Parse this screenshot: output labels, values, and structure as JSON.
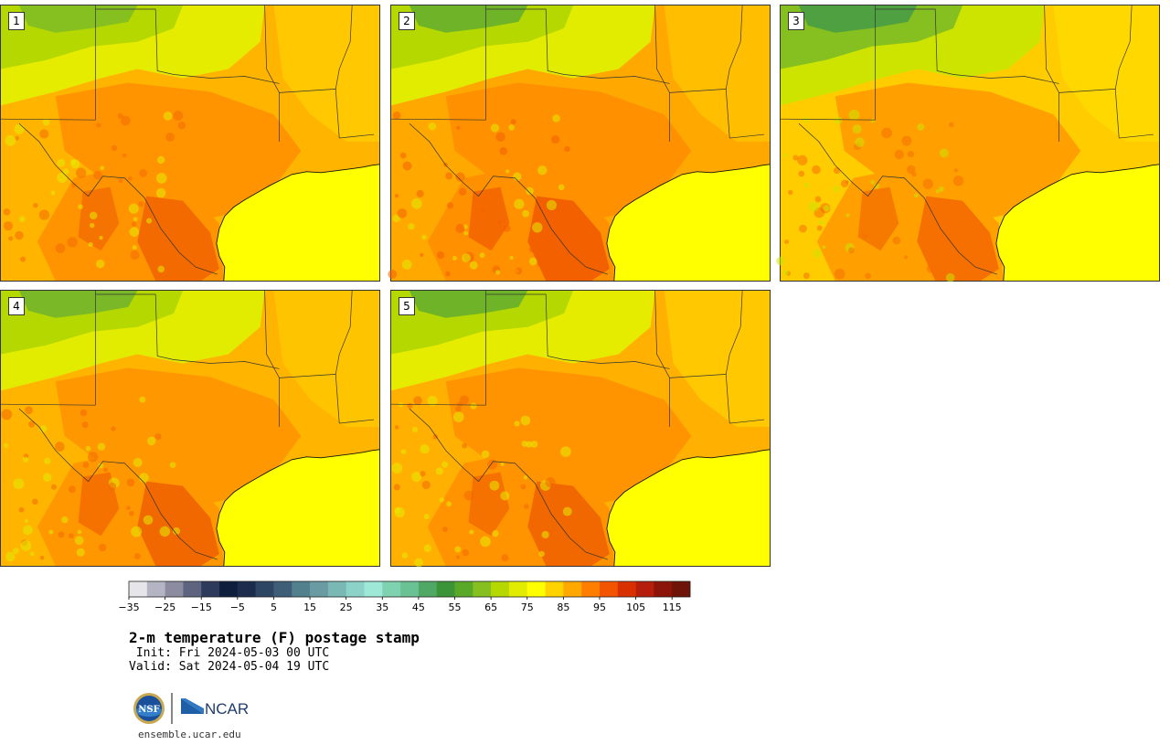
{
  "panels": [
    {
      "label": "1",
      "scheme": "hot"
    },
    {
      "label": "2",
      "scheme": "warm"
    },
    {
      "label": "3",
      "scheme": "coolnw"
    },
    {
      "label": "4",
      "scheme": "warmnw"
    },
    {
      "label": "5",
      "scheme": "mixed"
    }
  ],
  "colorbar": {
    "colors": [
      "#e6e6ea",
      "#b4b4c4",
      "#8c8ca0",
      "#5e6480",
      "#2e3a5c",
      "#0f1e3c",
      "#1c2c4c",
      "#2c4664",
      "#3e5e78",
      "#52808c",
      "#6a9aa2",
      "#7ab8b6",
      "#8cd2c8",
      "#9ee8d8",
      "#7fd2b0",
      "#6ac294",
      "#4fa864",
      "#3c9438",
      "#5aa828",
      "#86c020",
      "#b4d800",
      "#e2ec00",
      "#ffff00",
      "#ffd200",
      "#ffa800",
      "#ff7e00",
      "#f25400",
      "#d83000",
      "#b41e0a",
      "#8c1408",
      "#6e1408"
    ],
    "tick_labels": [
      "−35",
      "−25",
      "−15",
      "−5",
      "5",
      "15",
      "25",
      "35",
      "45",
      "55",
      "65",
      "75",
      "85",
      "95",
      "105",
      "115"
    ]
  },
  "title": "2-m temperature (F) postage stamp",
  "init": " Init: Fri 2024-05-03 00 UTC",
  "valid": "Valid: Sat 2024-05-04 19 UTC",
  "logos": {
    "nsf": "NSF",
    "ncar": "NCAR"
  },
  "site": "ensemble.ucar.edu"
}
